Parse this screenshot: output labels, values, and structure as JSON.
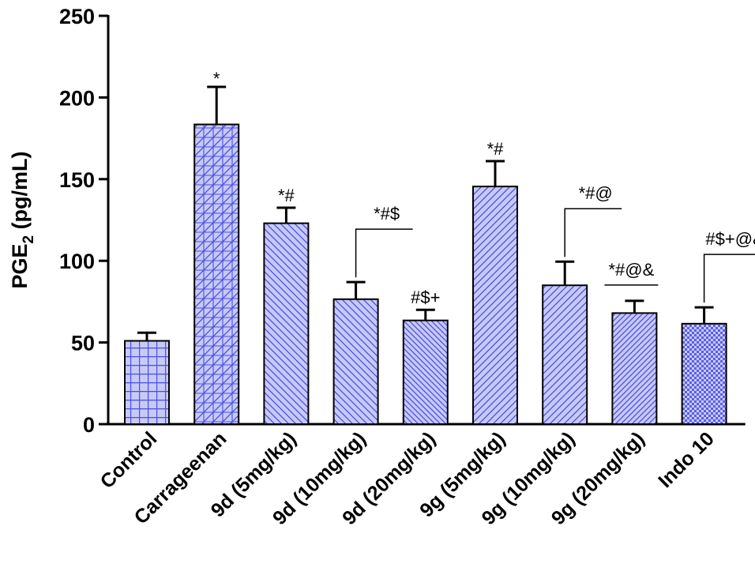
{
  "chart_data": {
    "type": "bar",
    "ylabel": {
      "main": "PGE",
      "sub": "2",
      "unit": " (pg/mL)"
    },
    "ylim": [
      0,
      250
    ],
    "yticks": [
      0,
      50,
      100,
      150,
      200,
      250
    ],
    "categories": [
      "Control",
      "Carrageenan",
      "9d (5mg/kg)",
      "9d (10mg/kg)",
      "9d (20mg/kg)",
      "9g (5mg/kg)",
      "9g (10mg/kg)",
      "9g (20mg/kg)",
      "Indo 10"
    ],
    "values": [
      51,
      183.5,
      123,
      76.5,
      63.5,
      145.5,
      85,
      68,
      61.5
    ],
    "errors": [
      5,
      23,
      9.5,
      10.5,
      6.5,
      15.5,
      14.5,
      7.5,
      10
    ],
    "patterns": [
      "grid",
      "crosshatch",
      "diag-down",
      "diag-down",
      "diag-down-dense",
      "diag-up",
      "diag-up",
      "diag-up-dense",
      "checker"
    ],
    "bar_fill": "#c7c9f7",
    "bar_line": "#4a4fe0",
    "annotations": [
      {
        "text": "*",
        "bar": 1,
        "bracket": false
      },
      {
        "text": "*#",
        "bar": 2,
        "bracket": false
      },
      {
        "text": "*#$",
        "bar": 3,
        "bracket": true
      },
      {
        "text": "#$+",
        "bar": 4,
        "bracket": false
      },
      {
        "text": "*#",
        "bar": 5,
        "bracket": false
      },
      {
        "text": "*#@",
        "bar": 6,
        "bracket": true
      },
      {
        "text": "*#@&",
        "bar": 7,
        "bracket": false,
        "line": true
      },
      {
        "text": "#$+@&",
        "bar": 8,
        "bracket": true
      }
    ]
  }
}
